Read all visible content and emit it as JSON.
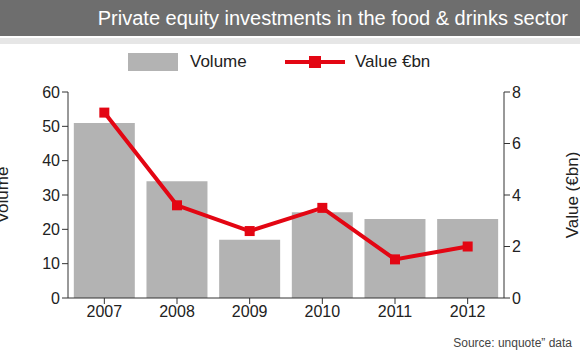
{
  "chart_data": {
    "type": "bar",
    "title": "Private equity investments in the food & drinks sector",
    "source": "Source: unquote” data",
    "categories": [
      "2007",
      "2008",
      "2009",
      "2010",
      "2011",
      "2012"
    ],
    "series": [
      {
        "name": "Volume",
        "type": "bar",
        "color": "#b3b3b3",
        "values": [
          51,
          34,
          17,
          25,
          23,
          23
        ]
      },
      {
        "name": "Value €bn",
        "type": "line",
        "axis": "y2",
        "color": "#e30613",
        "marker": "square",
        "values": [
          7.2,
          3.6,
          2.6,
          3.5,
          1.5,
          2.0
        ]
      }
    ],
    "y_label": "Volume",
    "y2_label": "Value (€bn)",
    "ylim": [
      0,
      60
    ],
    "yticks": [
      0,
      10,
      20,
      30,
      40,
      50,
      60
    ],
    "y2lim": [
      0,
      8
    ],
    "y2ticks": [
      0,
      2,
      4,
      6,
      8
    ]
  }
}
